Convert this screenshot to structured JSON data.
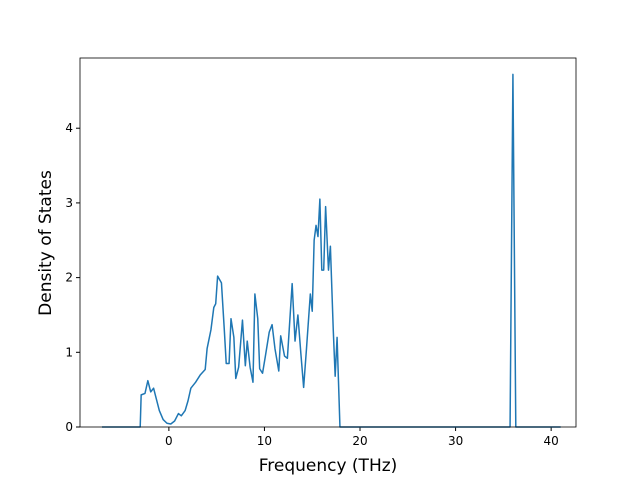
{
  "chart_data": {
    "type": "line",
    "x_label": "Frequency (THz)",
    "y_label": "Density of States",
    "xlim": [
      -9.3,
      42.6
    ],
    "ylim": [
      0,
      4.94
    ],
    "xticks": [
      0,
      10,
      20,
      30,
      40
    ],
    "yticks": [
      0,
      1,
      2,
      3,
      4
    ],
    "series": [
      {
        "color": "#1f77b4",
        "x": [
          -7,
          -3.0,
          -2.9,
          -2.5,
          -2.2,
          -1.9,
          -1.6,
          -1.4,
          -1.0,
          -0.6,
          -0.2,
          0.2,
          0.6,
          1.0,
          1.3,
          1.7,
          2.0,
          2.3,
          2.8,
          3.3,
          3.8,
          4.0,
          4.4,
          4.7,
          4.9,
          5.1,
          5.5,
          5.8,
          6.0,
          6.3,
          6.5,
          6.8,
          7.0,
          7.3,
          7.7,
          8.0,
          8.2,
          8.5,
          8.8,
          9.0,
          9.3,
          9.5,
          9.8,
          10.1,
          10.5,
          10.8,
          11.1,
          11.5,
          11.7,
          12.1,
          12.4,
          12.9,
          13.2,
          13.5,
          13.8,
          14.1,
          14.4,
          14.8,
          15.0,
          15.2,
          15.4,
          15.6,
          15.8,
          16.0,
          16.2,
          16.4,
          16.7,
          16.9,
          17.2,
          17.4,
          17.6,
          17.9,
          35.7,
          36.0,
          36.3,
          41
        ],
        "values": [
          0,
          0,
          0.43,
          0.45,
          0.62,
          0.47,
          0.52,
          0.42,
          0.22,
          0.1,
          0.05,
          0.04,
          0.08,
          0.18,
          0.15,
          0.22,
          0.35,
          0.52,
          0.6,
          0.7,
          0.77,
          1.05,
          1.3,
          1.6,
          1.65,
          2.02,
          1.93,
          1.3,
          0.85,
          0.85,
          1.45,
          1.2,
          0.65,
          0.8,
          1.43,
          0.82,
          1.15,
          0.8,
          0.6,
          1.78,
          1.45,
          0.78,
          0.72,
          0.95,
          1.27,
          1.37,
          1.05,
          0.75,
          1.22,
          0.95,
          0.92,
          1.92,
          1.15,
          1.5,
          1.0,
          0.53,
          1.05,
          1.78,
          1.55,
          2.5,
          2.7,
          2.55,
          3.05,
          2.1,
          2.1,
          2.95,
          2.1,
          2.42,
          1.3,
          0.68,
          1.2,
          0,
          0,
          4.72,
          0,
          0
        ]
      }
    ]
  }
}
